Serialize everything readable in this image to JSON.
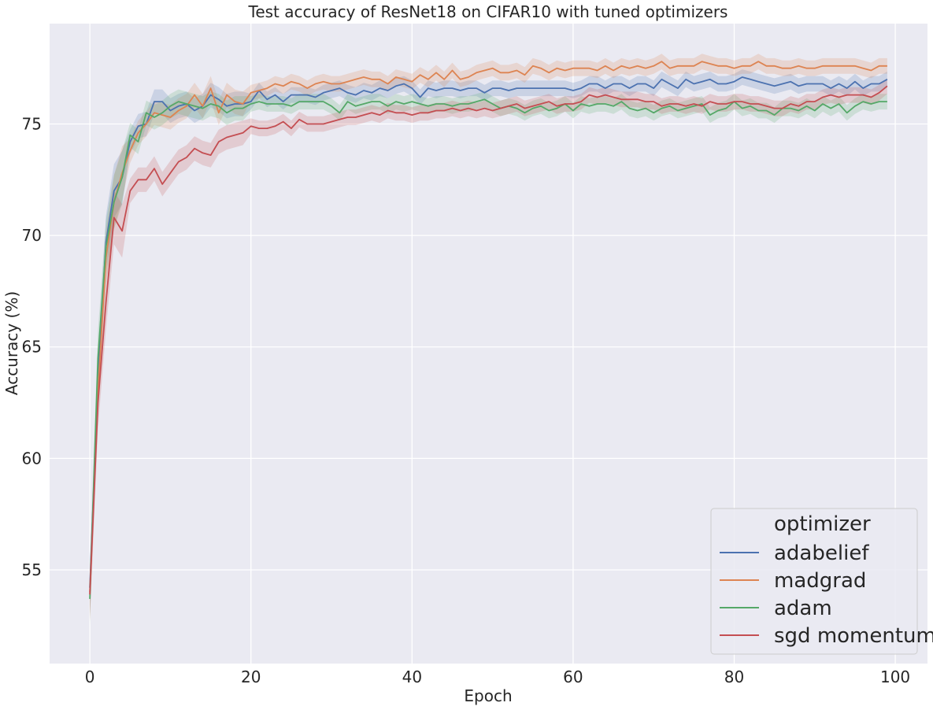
{
  "chart_data": {
    "type": "line",
    "title": "Test accuracy of ResNet18 on CIFAR10 with tuned optimizers",
    "xlabel": "Epoch",
    "ylabel": "Accuracy (%)",
    "xlim": [
      -5,
      104
    ],
    "ylim": [
      50.8,
      79.5
    ],
    "xticks": [
      0,
      20,
      40,
      60,
      80,
      100
    ],
    "yticks": [
      55,
      60,
      65,
      70,
      75
    ],
    "grid": true,
    "background": "#eaeaf2",
    "legend": {
      "title": "optimizer",
      "placement": "lower-right"
    },
    "x": [
      0,
      1,
      2,
      3,
      4,
      5,
      6,
      7,
      8,
      9,
      10,
      11,
      12,
      13,
      14,
      15,
      16,
      17,
      18,
      19,
      20,
      21,
      22,
      23,
      24,
      25,
      26,
      27,
      28,
      29,
      30,
      31,
      32,
      33,
      34,
      35,
      36,
      37,
      38,
      39,
      40,
      41,
      42,
      43,
      44,
      45,
      46,
      47,
      48,
      49,
      50,
      51,
      52,
      53,
      54,
      55,
      56,
      57,
      58,
      59,
      60,
      61,
      62,
      63,
      64,
      65,
      66,
      67,
      68,
      69,
      70,
      71,
      72,
      73,
      74,
      75,
      76,
      77,
      78,
      79,
      80,
      81,
      82,
      83,
      84,
      85,
      86,
      87,
      88,
      89,
      90,
      91,
      92,
      93,
      94,
      95,
      96,
      97,
      98,
      99
    ],
    "series": [
      {
        "name": "adabelief",
        "color": "#4c72b0",
        "values": [
          54.2,
          63.5,
          69.7,
          72.0,
          72.6,
          74.2,
          74.9,
          75.0,
          76.0,
          76.0,
          75.6,
          75.8,
          75.9,
          75.6,
          75.8,
          76.3,
          76.1,
          75.8,
          75.9,
          75.9,
          76.0,
          76.5,
          76.1,
          76.3,
          76.0,
          76.3,
          76.3,
          76.3,
          76.2,
          76.4,
          76.5,
          76.6,
          76.4,
          76.3,
          76.5,
          76.4,
          76.6,
          76.5,
          76.7,
          76.8,
          76.6,
          76.2,
          76.6,
          76.5,
          76.6,
          76.6,
          76.5,
          76.6,
          76.6,
          76.4,
          76.6,
          76.6,
          76.5,
          76.6,
          76.6,
          76.6,
          76.6,
          76.6,
          76.6,
          76.6,
          76.5,
          76.6,
          76.8,
          76.8,
          76.6,
          76.8,
          76.8,
          76.6,
          76.8,
          76.8,
          76.6,
          77.0,
          76.8,
          76.6,
          77.0,
          76.8,
          76.9,
          77.0,
          76.8,
          76.8,
          76.9,
          77.1,
          77.0,
          76.9,
          76.8,
          76.7,
          76.8,
          76.9,
          76.7,
          76.8,
          76.8,
          76.8,
          76.6,
          76.8,
          76.6,
          76.9,
          76.6,
          76.8,
          76.8,
          77.0
        ]
      },
      {
        "name": "madgrad",
        "color": "#dd8452",
        "values": [
          54.0,
          63.0,
          69.0,
          71.5,
          72.8,
          73.8,
          74.6,
          75.0,
          75.5,
          75.4,
          75.3,
          75.6,
          75.8,
          76.3,
          75.8,
          76.6,
          75.5,
          76.3,
          76.0,
          75.9,
          76.4,
          76.5,
          76.6,
          76.8,
          76.7,
          76.9,
          76.8,
          76.6,
          76.8,
          76.9,
          76.8,
          76.8,
          76.9,
          77.0,
          77.1,
          77.0,
          77.0,
          76.8,
          77.1,
          77.0,
          76.9,
          77.2,
          77.0,
          77.3,
          77.0,
          77.4,
          77.0,
          77.1,
          77.3,
          77.4,
          77.5,
          77.3,
          77.3,
          77.4,
          77.2,
          77.6,
          77.5,
          77.3,
          77.5,
          77.4,
          77.5,
          77.5,
          77.5,
          77.4,
          77.6,
          77.4,
          77.6,
          77.5,
          77.6,
          77.5,
          77.6,
          77.8,
          77.5,
          77.6,
          77.6,
          77.6,
          77.8,
          77.7,
          77.6,
          77.6,
          77.5,
          77.6,
          77.6,
          77.8,
          77.6,
          77.6,
          77.5,
          77.5,
          77.6,
          77.5,
          77.5,
          77.6,
          77.6,
          77.6,
          77.6,
          77.6,
          77.5,
          77.4,
          77.6,
          77.6
        ]
      },
      {
        "name": "adam",
        "color": "#55a868",
        "values": [
          53.7,
          64.5,
          69.5,
          71.5,
          72.6,
          74.5,
          74.2,
          75.5,
          75.3,
          75.5,
          75.8,
          76.0,
          75.9,
          75.8,
          75.7,
          75.9,
          75.8,
          75.5,
          75.7,
          75.7,
          75.9,
          76.0,
          75.9,
          75.9,
          75.9,
          75.8,
          76.0,
          76.0,
          76.0,
          76.0,
          75.8,
          75.5,
          76.0,
          75.8,
          75.9,
          76.0,
          76.0,
          75.8,
          76.0,
          75.9,
          76.0,
          75.9,
          75.8,
          75.9,
          75.9,
          75.8,
          75.9,
          75.9,
          76.0,
          76.1,
          75.9,
          75.7,
          75.8,
          75.7,
          75.5,
          75.7,
          75.8,
          75.6,
          75.7,
          75.9,
          75.6,
          75.9,
          75.8,
          75.9,
          75.9,
          75.8,
          76.0,
          75.7,
          75.6,
          75.7,
          75.5,
          75.7,
          75.8,
          75.6,
          75.7,
          75.8,
          75.9,
          75.4,
          75.6,
          75.7,
          76.0,
          75.7,
          75.8,
          75.6,
          75.6,
          75.4,
          75.7,
          75.7,
          75.6,
          75.8,
          75.6,
          75.9,
          75.7,
          75.9,
          75.5,
          75.8,
          76.0,
          75.9,
          76.0,
          76.0
        ]
      },
      {
        "name": "sgd momentum",
        "color": "#c44e52",
        "values": [
          53.9,
          62.5,
          67.0,
          70.8,
          70.2,
          72.0,
          72.5,
          72.5,
          73.0,
          72.3,
          72.8,
          73.3,
          73.5,
          73.9,
          73.7,
          73.6,
          74.2,
          74.4,
          74.5,
          74.6,
          74.9,
          74.8,
          74.8,
          74.9,
          75.1,
          74.8,
          75.2,
          75.0,
          75.0,
          75.0,
          75.1,
          75.2,
          75.3,
          75.3,
          75.4,
          75.5,
          75.4,
          75.6,
          75.5,
          75.5,
          75.4,
          75.5,
          75.5,
          75.6,
          75.6,
          75.7,
          75.6,
          75.7,
          75.6,
          75.7,
          75.6,
          75.7,
          75.8,
          75.9,
          75.7,
          75.8,
          75.9,
          76.0,
          75.8,
          75.9,
          75.9,
          76.0,
          76.3,
          76.2,
          76.3,
          76.2,
          76.1,
          76.1,
          76.1,
          76.0,
          76.0,
          75.8,
          75.9,
          75.9,
          75.8,
          75.9,
          75.8,
          76.0,
          75.9,
          75.9,
          76.0,
          76.0,
          75.9,
          75.9,
          75.8,
          75.7,
          75.7,
          75.9,
          75.8,
          76.0,
          76.0,
          76.2,
          76.3,
          76.2,
          76.3,
          76.3,
          76.3,
          76.2,
          76.4,
          76.7
        ]
      }
    ]
  }
}
